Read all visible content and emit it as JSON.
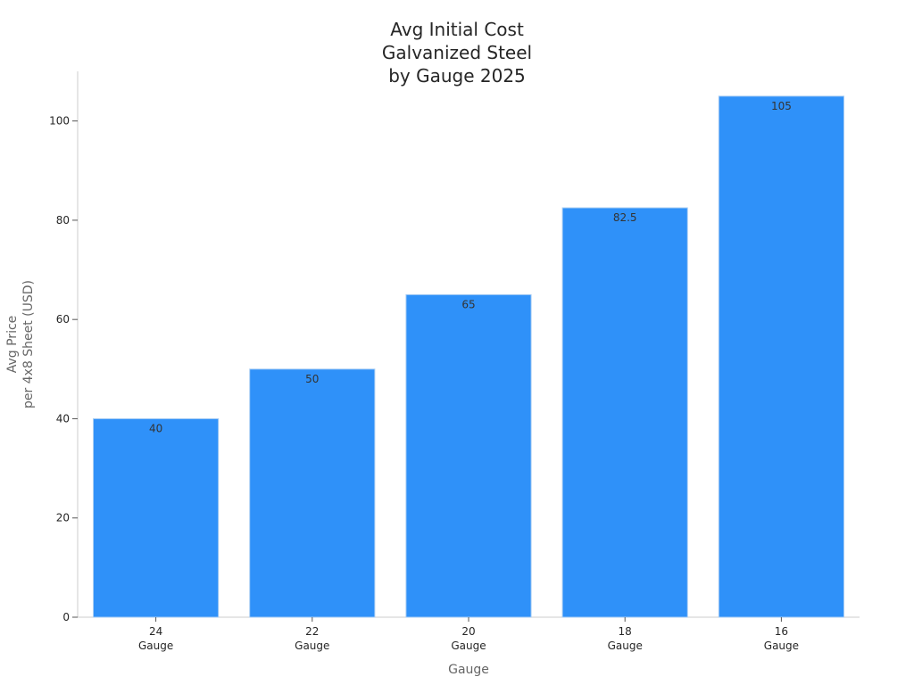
{
  "chart_data": {
    "type": "bar",
    "title": [
      "Avg Initial Cost",
      "Galvanized Steel",
      "by Gauge 2025"
    ],
    "xlabel": "Gauge",
    "ylabel": [
      "Avg Price",
      "per 4x8 Sheet (USD)"
    ],
    "categories": [
      [
        "24",
        "Gauge"
      ],
      [
        "22",
        "Gauge"
      ],
      [
        "20",
        "Gauge"
      ],
      [
        "18",
        "Gauge"
      ],
      [
        "16",
        "Gauge"
      ]
    ],
    "values": [
      40,
      50,
      65,
      82.5,
      105
    ],
    "data_labels": [
      "40",
      "50",
      "65",
      "82.5",
      "105"
    ],
    "ylim": [
      0,
      110
    ],
    "yticks": [
      0,
      20,
      40,
      60,
      80,
      100
    ],
    "grid": false,
    "legend": "none",
    "colors": {
      "bar": "#2f91f9",
      "bar_edge": "#a9cdf3"
    }
  }
}
